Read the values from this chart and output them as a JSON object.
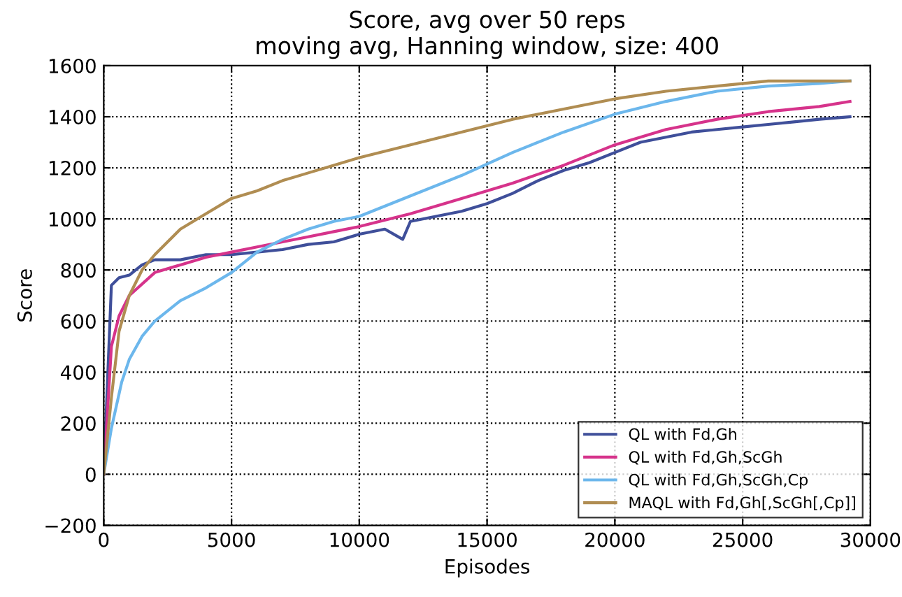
{
  "chart_data": {
    "type": "line",
    "title": "Score, avg over 50 reps\nmoving avg, Hanning window, size: 400",
    "xlabel": "Episodes",
    "ylabel": "Score",
    "xlim": [
      0,
      30000
    ],
    "xticks": [
      0,
      5000,
      10000,
      15000,
      20000,
      25000,
      30000
    ],
    "ylim": [
      -200,
      1600
    ],
    "yticks": [
      {
        "value": -200,
        "label": "−200"
      },
      0,
      200,
      400,
      600,
      800,
      1000,
      1200,
      1400,
      1600
    ],
    "grid": true,
    "legend": "bottom right",
    "line_style": "solid",
    "marker": "none",
    "series": [
      {
        "name": "QL with Fd,Gh",
        "color": "#3f4f9a",
        "x": [
          0,
          300,
          600,
          1000,
          1500,
          2000,
          3000,
          4000,
          5000,
          6000,
          7000,
          8000,
          9000,
          10000,
          11000,
          11700,
          12000,
          13000,
          14000,
          15000,
          16000,
          17000,
          18000,
          19000,
          20000,
          21000,
          22000,
          23000,
          24000,
          25000,
          26000,
          27000,
          28000,
          29200
        ],
        "values": [
          0,
          740,
          770,
          780,
          820,
          840,
          840,
          860,
          860,
          870,
          880,
          900,
          910,
          940,
          960,
          920,
          990,
          1010,
          1030,
          1060,
          1100,
          1150,
          1190,
          1220,
          1260,
          1300,
          1320,
          1340,
          1350,
          1360,
          1370,
          1380,
          1390,
          1400
        ]
      },
      {
        "name": "QL with Fd,Gh,ScGh",
        "color": "#d6338b",
        "x": [
          0,
          300,
          600,
          1000,
          2000,
          3000,
          4000,
          5000,
          6000,
          7000,
          8000,
          9000,
          10000,
          12000,
          14000,
          16000,
          18000,
          20000,
          22000,
          24000,
          26000,
          28000,
          29200
        ],
        "values": [
          0,
          500,
          620,
          700,
          790,
          820,
          850,
          870,
          890,
          910,
          930,
          950,
          970,
          1020,
          1080,
          1140,
          1210,
          1290,
          1350,
          1390,
          1420,
          1440,
          1460
        ]
      },
      {
        "name": "QL with Fd,Gh,ScGh,Cp",
        "color": "#6cb7ec",
        "x": [
          0,
          300,
          700,
          1000,
          1500,
          2000,
          3000,
          4000,
          5000,
          6000,
          7000,
          8000,
          9000,
          10000,
          12000,
          14000,
          16000,
          18000,
          20000,
          22000,
          24000,
          26000,
          28000,
          29200
        ],
        "values": [
          0,
          180,
          360,
          450,
          540,
          600,
          680,
          730,
          790,
          870,
          920,
          960,
          990,
          1010,
          1090,
          1170,
          1260,
          1340,
          1410,
          1460,
          1500,
          1520,
          1530,
          1540
        ]
      },
      {
        "name": "MAQL with Fd,Gh[,ScGh[,Cp]]",
        "color": "#b08d52",
        "x": [
          0,
          300,
          600,
          1000,
          1500,
          2000,
          3000,
          4000,
          5000,
          6000,
          7000,
          8000,
          9000,
          10000,
          12000,
          14000,
          16000,
          18000,
          20000,
          22000,
          24000,
          26000,
          28000,
          29200
        ],
        "values": [
          0,
          300,
          560,
          700,
          800,
          860,
          960,
          1020,
          1080,
          1110,
          1150,
          1180,
          1210,
          1240,
          1290,
          1340,
          1390,
          1430,
          1470,
          1500,
          1520,
          1540,
          1540,
          1540
        ]
      }
    ]
  }
}
